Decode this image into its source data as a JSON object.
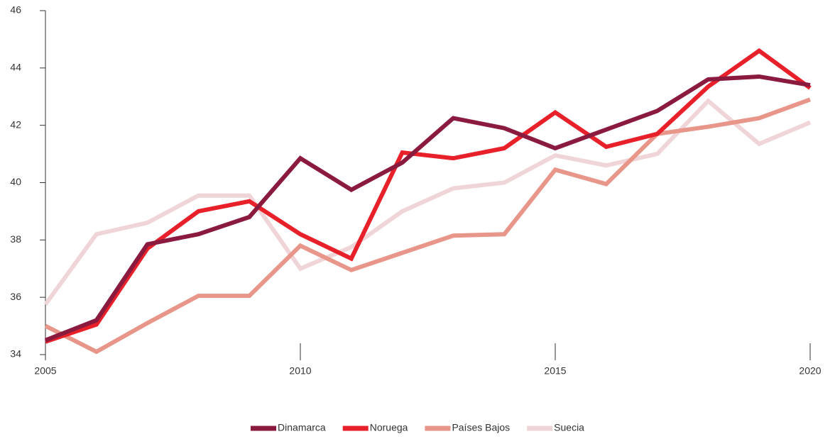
{
  "chart_data": {
    "type": "line",
    "x": [
      2005,
      2006,
      2007,
      2008,
      2009,
      2010,
      2011,
      2012,
      2013,
      2014,
      2015,
      2016,
      2017,
      2018,
      2019,
      2020
    ],
    "series": [
      {
        "name": "Dinamarca",
        "color": "#8b1a3f",
        "values": [
          34.5,
          35.2,
          37.85,
          38.2,
          38.8,
          40.85,
          39.75,
          40.7,
          42.25,
          41.9,
          41.2,
          41.85,
          42.5,
          43.6,
          43.7,
          43.4
        ]
      },
      {
        "name": "Noruega",
        "color": "#e8202a",
        "values": [
          34.45,
          35.05,
          37.7,
          39.0,
          39.35,
          38.2,
          37.35,
          41.05,
          40.85,
          41.2,
          42.45,
          41.25,
          41.7,
          43.35,
          44.6,
          43.3
        ]
      },
      {
        "name": "Países Bajos",
        "color": "#e8968a",
        "values": [
          35.0,
          34.1,
          35.1,
          36.05,
          36.05,
          37.8,
          36.95,
          37.55,
          38.15,
          38.2,
          40.45,
          39.95,
          41.7,
          41.95,
          42.25,
          42.9
        ]
      },
      {
        "name": "Suecia",
        "color": "#f0d5d8",
        "values": [
          35.75,
          38.2,
          38.6,
          39.55,
          39.55,
          37.0,
          37.75,
          39.0,
          39.8,
          40.0,
          40.95,
          40.6,
          41.0,
          42.85,
          41.35,
          42.1
        ]
      }
    ],
    "xlim": [
      2005,
      2020
    ],
    "xticks": [
      2005,
      2010,
      2015,
      2020
    ],
    "ylim": [
      34,
      46
    ],
    "yticks": [
      34,
      36,
      38,
      40,
      42,
      44,
      46
    ],
    "grid": false,
    "legend": "bottom"
  }
}
